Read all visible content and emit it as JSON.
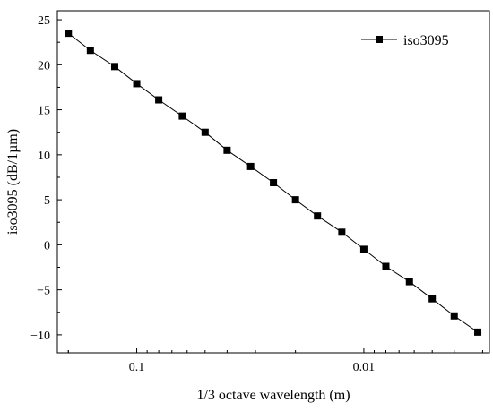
{
  "chart_data": {
    "type": "line",
    "xlabel": "1/3 octave wavelength (m)",
    "ylabel": "iso3095 (dB/1µm)",
    "x_scale": "log-reversed",
    "xlim": [
      0.2236,
      0.0028
    ],
    "ylim": [
      -12,
      26
    ],
    "x_ticks": [
      {
        "value": 0.1,
        "label": "0.1"
      },
      {
        "value": 0.01,
        "label": "0.01"
      }
    ],
    "y_ticks": [
      -10,
      -5,
      0,
      5,
      10,
      15,
      20,
      25
    ],
    "legend": {
      "position": "top-right",
      "entries": [
        "iso3095"
      ]
    },
    "series": [
      {
        "name": "iso3095",
        "marker": "square",
        "color": "#000000",
        "x": [
          0.2,
          0.16,
          0.125,
          0.1,
          0.08,
          0.063,
          0.05,
          0.04,
          0.0315,
          0.025,
          0.02,
          0.016,
          0.0125,
          0.01,
          0.008,
          0.0063,
          0.005,
          0.004,
          0.00315
        ],
        "y": [
          23.5,
          21.6,
          19.8,
          17.9,
          16.1,
          14.3,
          12.5,
          10.5,
          8.7,
          6.9,
          5.0,
          3.2,
          1.4,
          -0.5,
          -2.4,
          -4.1,
          -6.0,
          -7.9,
          -9.7
        ]
      }
    ]
  }
}
